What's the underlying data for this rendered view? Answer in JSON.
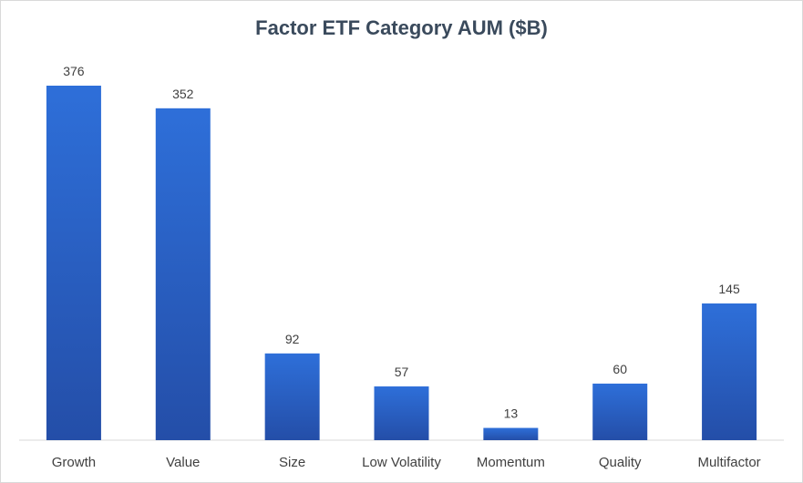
{
  "chart_data": {
    "type": "bar",
    "title": "Factor ETF Category AUM ($B)",
    "xlabel": "",
    "ylabel": "",
    "categories": [
      "Growth",
      "Value",
      "Size",
      "Low Volatility",
      "Momentum",
      "Quality",
      "Multifactor"
    ],
    "values": [
      376,
      352,
      92,
      57,
      13,
      60,
      145
    ],
    "ylim": [
      0,
      400
    ],
    "grid": false,
    "data_labels": true,
    "colors": {
      "bar_top": "#2e6fd9",
      "bar_bottom": "#244ea8",
      "text": "#404040",
      "title": "#3a4a5c"
    }
  }
}
